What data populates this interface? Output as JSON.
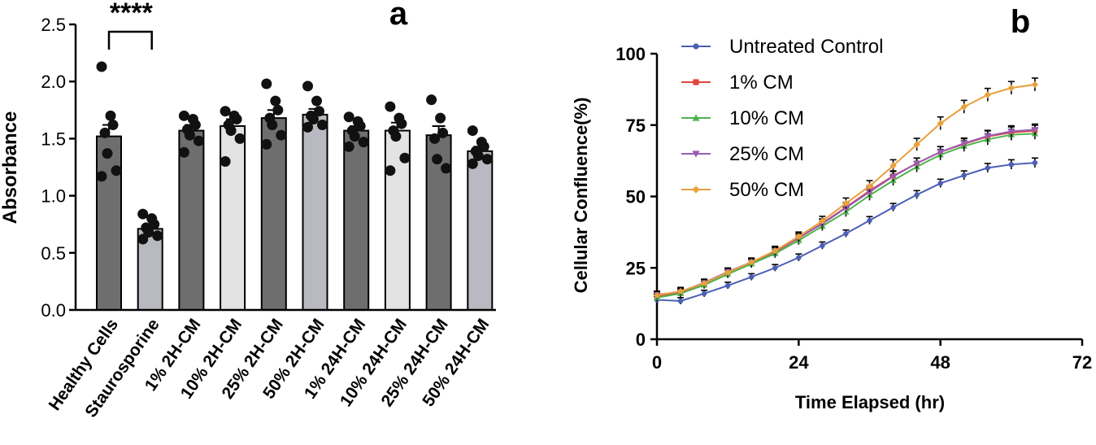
{
  "chart_data": [
    {
      "panel": "a",
      "type": "bar",
      "ylabel": "Absorbance",
      "xlabel": "",
      "ylim": [
        0,
        2.5
      ],
      "yticks": [
        "0.0",
        "0.5",
        "1.0",
        "1.5",
        "2.0",
        "2.5"
      ],
      "categories": [
        "Healthy Cells",
        "Staurosporine",
        "1% 2H-CM",
        "10% 2H-CM",
        "25% 2H-CM",
        "50% 2H-CM",
        "1% 24H-CM",
        "10% 24H-CM",
        "25% 24H-CM",
        "50% 24H-CM"
      ],
      "values": [
        1.52,
        0.71,
        1.57,
        1.61,
        1.68,
        1.71,
        1.57,
        1.57,
        1.53,
        1.39
      ],
      "errors": [
        0.1,
        0.04,
        0.05,
        0.06,
        0.07,
        0.05,
        0.04,
        0.07,
        0.08,
        0.04
      ],
      "bar_colors": [
        "#6e6e6e",
        "#b9b9c1",
        "#6e6e6e",
        "#e3e3e3",
        "#6e6e6e",
        "#b9b9c1",
        "#6e6e6e",
        "#e3e3e3",
        "#6e6e6e",
        "#b9b9c1"
      ],
      "points": [
        [
          2.13,
          1.7,
          1.62,
          1.55,
          1.37,
          1.22,
          1.17
        ],
        [
          0.84,
          0.8,
          0.75,
          0.72,
          0.68,
          0.65,
          0.62
        ],
        [
          1.7,
          1.67,
          1.62,
          1.58,
          1.53,
          1.48,
          1.38
        ],
        [
          1.74,
          1.7,
          1.67,
          1.62,
          1.57,
          1.5,
          1.3
        ],
        [
          1.98,
          1.83,
          1.75,
          1.68,
          1.62,
          1.53,
          1.45
        ],
        [
          1.96,
          1.83,
          1.74,
          1.7,
          1.67,
          1.62,
          1.6
        ],
        [
          1.69,
          1.65,
          1.61,
          1.57,
          1.52,
          1.47,
          1.43
        ],
        [
          1.78,
          1.68,
          1.63,
          1.57,
          1.52,
          1.33,
          1.22
        ],
        [
          1.84,
          1.68,
          1.55,
          1.5,
          1.32,
          1.24
        ],
        [
          1.57,
          1.47,
          1.43,
          1.39,
          1.35,
          1.32,
          1.28
        ]
      ],
      "significance": {
        "label": "****",
        "between": [
          0,
          1
        ]
      },
      "panel_label": "a"
    },
    {
      "panel": "b",
      "type": "line",
      "xlabel": "Time Elapsed (hr)",
      "ylabel": "Cellular Confluence(%)",
      "xlim": [
        0,
        72
      ],
      "ylim": [
        0,
        100
      ],
      "xticks": [
        "0",
        "24",
        "48",
        "72"
      ],
      "yticks": [
        "0",
        "25",
        "50",
        "75",
        "100"
      ],
      "x": [
        0,
        4,
        8,
        12,
        16,
        20,
        24,
        28,
        32,
        36,
        40,
        44,
        48,
        52,
        56,
        60,
        64
      ],
      "series": [
        {
          "name": "Untreated Control",
          "color": "#4a5fb5",
          "marker": "circle",
          "values": [
            13.8,
            13.4,
            16.0,
            18.8,
            21.8,
            25.0,
            28.6,
            32.8,
            37.0,
            41.6,
            46.2,
            50.6,
            54.6,
            57.4,
            60.0,
            61.2,
            61.8
          ],
          "errors": [
            0.3,
            0.3,
            0.3,
            0.3,
            0.3,
            0.3,
            0.4,
            0.4,
            0.4,
            0.5,
            0.5,
            0.6,
            0.6,
            0.7,
            0.7,
            0.8,
            0.8
          ]
        },
        {
          "name": "1% CM",
          "color": "#e0443a",
          "marker": "square",
          "values": [
            15.0,
            16.4,
            19.6,
            23.4,
            26.8,
            30.6,
            35.4,
            40.6,
            46.2,
            52.0,
            57.2,
            61.6,
            65.6,
            68.4,
            71.0,
            72.4,
            73.0
          ],
          "errors": [
            0.4,
            0.4,
            0.4,
            0.5,
            0.5,
            0.6,
            0.6,
            0.7,
            0.8,
            0.9,
            0.9,
            1.0,
            1.0,
            1.0,
            1.1,
            1.1,
            1.1
          ]
        },
        {
          "name": "10% CM",
          "color": "#4fb34f",
          "marker": "triangle-up",
          "values": [
            14.6,
            16.0,
            19.0,
            22.8,
            26.4,
            30.0,
            34.6,
            39.6,
            44.6,
            50.4,
            55.6,
            60.4,
            64.6,
            67.6,
            70.0,
            71.6,
            72.0
          ],
          "errors": [
            0.4,
            0.4,
            0.4,
            0.5,
            0.5,
            0.6,
            0.6,
            0.7,
            0.8,
            0.9,
            0.9,
            1.0,
            1.0,
            1.0,
            1.1,
            1.1,
            1.1
          ]
        },
        {
          "name": "25% CM",
          "color": "#9a5bb5",
          "marker": "triangle-down",
          "values": [
            15.6,
            16.6,
            19.8,
            23.6,
            27.0,
            30.8,
            35.6,
            40.4,
            46.0,
            51.6,
            57.0,
            61.6,
            65.6,
            68.6,
            71.2,
            72.8,
            73.4
          ],
          "errors": [
            0.4,
            0.4,
            0.4,
            0.5,
            0.5,
            0.6,
            0.6,
            0.7,
            0.8,
            0.9,
            0.9,
            1.0,
            1.0,
            1.0,
            1.1,
            1.1,
            1.1
          ]
        },
        {
          "name": "50% CM",
          "color": "#e8a13a",
          "marker": "diamond",
          "values": [
            15.4,
            16.8,
            19.6,
            23.4,
            27.0,
            31.0,
            36.0,
            41.4,
            47.6,
            53.6,
            60.8,
            68.2,
            75.6,
            81.4,
            85.6,
            88.0,
            89.2
          ],
          "errors": [
            0.5,
            0.5,
            0.5,
            0.6,
            0.6,
            0.7,
            0.7,
            0.8,
            1.0,
            1.1,
            1.2,
            1.3,
            1.4,
            1.4,
            1.4,
            1.4,
            1.4
          ]
        }
      ],
      "legend_position": "top-left",
      "panel_label": "b"
    }
  ]
}
